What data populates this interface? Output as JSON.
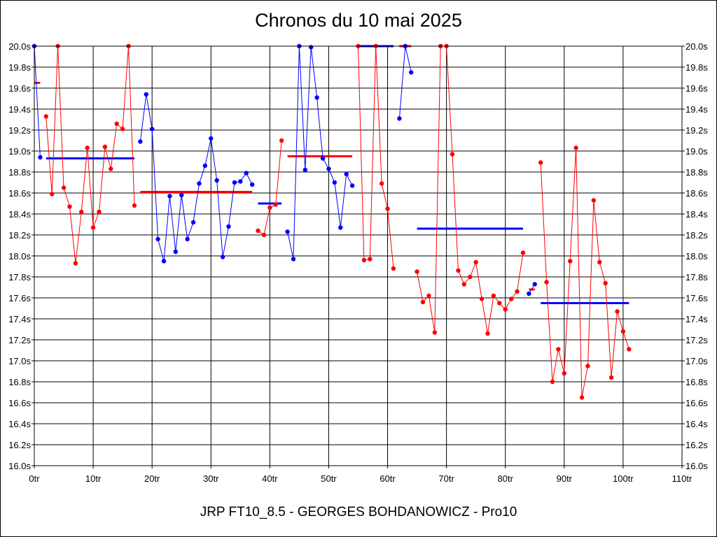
{
  "chart_data": {
    "type": "line",
    "title": "Chronos du 10 mai 2025",
    "footer": "JRP FT10_8.5 - GEORGES BOHDANOWICZ - Pro10",
    "xlim": [
      0,
      110
    ],
    "ylim": [
      16.0,
      20.0
    ],
    "x_ticks": [
      0,
      10,
      20,
      30,
      40,
      50,
      60,
      70,
      80,
      90,
      100,
      110
    ],
    "x_tick_labels": [
      "0tr",
      "10tr",
      "20tr",
      "30tr",
      "40tr",
      "50tr",
      "60tr",
      "70tr",
      "80tr",
      "90tr",
      "100tr",
      "110tr"
    ],
    "y_ticks": [
      16.0,
      16.2,
      16.4,
      16.6,
      16.8,
      17.0,
      17.2,
      17.4,
      17.6,
      17.8,
      18.0,
      18.2,
      18.4,
      18.6,
      18.8,
      19.0,
      19.2,
      19.4,
      19.6,
      19.8,
      20.0
    ],
    "y_tick_labels": [
      "16.0s",
      "16.2s",
      "16.4s",
      "16.6s",
      "16.8s",
      "17.0s",
      "17.2s",
      "17.4s",
      "17.6s",
      "17.8s",
      "18.0s",
      "18.2s",
      "18.4s",
      "18.6s",
      "18.8s",
      "19.0s",
      "19.2s",
      "19.4s",
      "19.6s",
      "19.8s",
      "20.0s"
    ],
    "grid": true,
    "colors": {
      "blue": "#0000ff",
      "red": "#ff0000"
    },
    "segments": [
      {
        "color": "blue",
        "x": [
          0,
          1
        ],
        "y": [
          20.0,
          18.94
        ]
      },
      {
        "color": "red",
        "x": [
          2,
          3,
          4,
          5,
          6,
          7,
          8,
          9,
          10,
          11,
          12,
          13,
          14,
          15,
          16,
          17
        ],
        "y": [
          19.33,
          18.59,
          20.0,
          18.65,
          18.47,
          17.93,
          18.42,
          19.03,
          18.27,
          18.42,
          19.04,
          18.83,
          19.26,
          19.21,
          20.0,
          18.48
        ]
      },
      {
        "color": "blue",
        "x": [
          18,
          19,
          20,
          21,
          22,
          23,
          24,
          25,
          26,
          27,
          28,
          29,
          30,
          31,
          32,
          33,
          34,
          35,
          36,
          37
        ],
        "y": [
          19.09,
          19.54,
          19.21,
          18.16,
          17.95,
          18.57,
          18.04,
          18.58,
          18.16,
          18.32,
          18.69,
          18.86,
          19.12,
          18.72,
          17.99,
          18.28,
          18.7,
          18.71,
          18.79,
          18.68
        ]
      },
      {
        "color": "red",
        "x": [
          38,
          39,
          40,
          41,
          42
        ],
        "y": [
          18.24,
          18.2,
          18.46,
          18.49,
          19.1
        ]
      },
      {
        "color": "blue",
        "x": [
          43,
          44,
          45,
          46,
          47,
          48,
          49,
          50,
          51,
          52,
          53,
          54
        ],
        "y": [
          18.23,
          17.97,
          20.0,
          18.82,
          19.99,
          19.51,
          18.93,
          18.83,
          18.7,
          18.27,
          18.78,
          18.67
        ]
      },
      {
        "color": "red",
        "x": [
          55,
          56,
          57,
          58,
          59,
          60,
          61
        ],
        "y": [
          20.0,
          17.96,
          17.97,
          20.0,
          18.69,
          18.45,
          17.88
        ]
      },
      {
        "color": "blue",
        "x": [
          62,
          63,
          64
        ],
        "y": [
          19.31,
          20.0,
          19.75
        ]
      },
      {
        "color": "red",
        "x": [
          65,
          66,
          67,
          68,
          69,
          70,
          71,
          72,
          73,
          74,
          75,
          76,
          77,
          78,
          79,
          80,
          81,
          82,
          83
        ],
        "y": [
          17.85,
          17.56,
          17.62,
          17.27,
          20.0,
          20.0,
          18.97,
          17.86,
          17.73,
          17.8,
          17.94,
          17.59,
          17.26,
          17.62,
          17.55,
          17.49,
          17.59,
          17.66,
          18.03
        ]
      },
      {
        "color": "blue",
        "x": [
          84,
          85
        ],
        "y": [
          17.64,
          17.73
        ]
      },
      {
        "color": "red",
        "x": [
          86,
          87,
          88,
          89,
          90,
          91,
          92,
          93,
          94,
          95,
          96,
          97,
          98,
          99,
          100,
          101
        ],
        "y": [
          18.89,
          17.75,
          16.8,
          17.11,
          16.88,
          17.95,
          19.03,
          16.65,
          16.95,
          18.53,
          17.94,
          17.74,
          16.84,
          17.47,
          17.28,
          17.11
        ]
      }
    ],
    "averages": [
      {
        "color": "red",
        "x": [
          0,
          1
        ],
        "y": 19.65
      },
      {
        "color": "blue",
        "x": [
          2,
          17
        ],
        "y": 18.93
      },
      {
        "color": "red",
        "x": [
          18,
          37
        ],
        "y": 18.61
      },
      {
        "color": "blue",
        "x": [
          38,
          42
        ],
        "y": 18.5
      },
      {
        "color": "red",
        "x": [
          43,
          54
        ],
        "y": 18.95
      },
      {
        "color": "blue",
        "x": [
          55,
          61
        ],
        "y": 20.0
      },
      {
        "color": "red",
        "x": [
          62,
          64
        ],
        "y": 20.0
      },
      {
        "color": "blue",
        "x": [
          65,
          83
        ],
        "y": 18.26
      },
      {
        "color": "red",
        "x": [
          84,
          85
        ],
        "y": 17.68
      },
      {
        "color": "blue",
        "x": [
          86,
          101
        ],
        "y": 17.55
      }
    ]
  }
}
